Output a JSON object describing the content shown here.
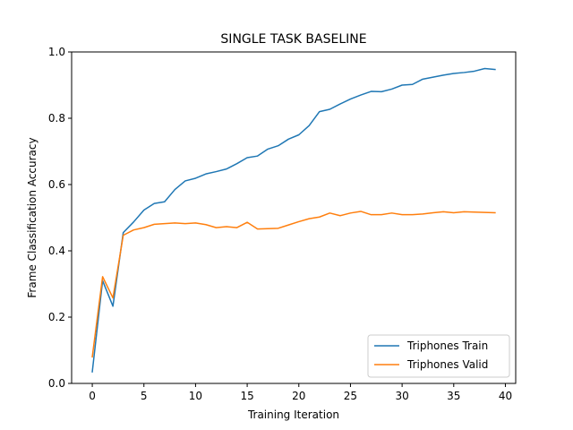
{
  "chart_data": {
    "type": "line",
    "title": "SINGLE TASK BASELINE",
    "xlabel": "Training Iteration",
    "ylabel": "Frame Classification Accuracy",
    "xlim": [
      -2.0,
      41.0
    ],
    "ylim": [
      0.0,
      1.0
    ],
    "xticks": [
      0,
      5,
      10,
      15,
      20,
      25,
      30,
      35,
      40
    ],
    "yticks": [
      0.0,
      0.2,
      0.4,
      0.6,
      0.8,
      1.0
    ],
    "ytick_labels": [
      "0.0",
      "0.2",
      "0.4",
      "0.6",
      "0.8",
      "1.0"
    ],
    "grid": false,
    "legend_position": "lower-right",
    "x": [
      0,
      1,
      2,
      3,
      4,
      5,
      6,
      7,
      8,
      9,
      10,
      11,
      12,
      13,
      14,
      15,
      16,
      17,
      18,
      19,
      20,
      21,
      22,
      23,
      24,
      25,
      26,
      27,
      28,
      29,
      30,
      31,
      32,
      33,
      34,
      35,
      36,
      37,
      38,
      39
    ],
    "series": [
      {
        "name": "Triphones Train",
        "color": "#1f77b4",
        "values": [
          0.035,
          0.31,
          0.233,
          0.455,
          0.487,
          0.523,
          0.543,
          0.548,
          0.585,
          0.611,
          0.619,
          0.632,
          0.639,
          0.647,
          0.663,
          0.681,
          0.686,
          0.707,
          0.717,
          0.737,
          0.75,
          0.778,
          0.82,
          0.827,
          0.843,
          0.858,
          0.87,
          0.881,
          0.88,
          0.888,
          0.9,
          0.902,
          0.918,
          0.924,
          0.93,
          0.935,
          0.938,
          0.942,
          0.95,
          0.947
        ]
      },
      {
        "name": "Triphones Valid",
        "color": "#ff7f0e",
        "values": [
          0.08,
          0.322,
          0.258,
          0.447,
          0.463,
          0.47,
          0.48,
          0.482,
          0.484,
          0.482,
          0.484,
          0.479,
          0.47,
          0.473,
          0.47,
          0.486,
          0.466,
          0.467,
          0.468,
          0.478,
          0.488,
          0.497,
          0.502,
          0.514,
          0.506,
          0.514,
          0.519,
          0.509,
          0.509,
          0.514,
          0.509,
          0.509,
          0.511,
          0.515,
          0.518,
          0.515,
          0.518,
          0.517,
          0.516,
          0.515
        ]
      }
    ]
  }
}
